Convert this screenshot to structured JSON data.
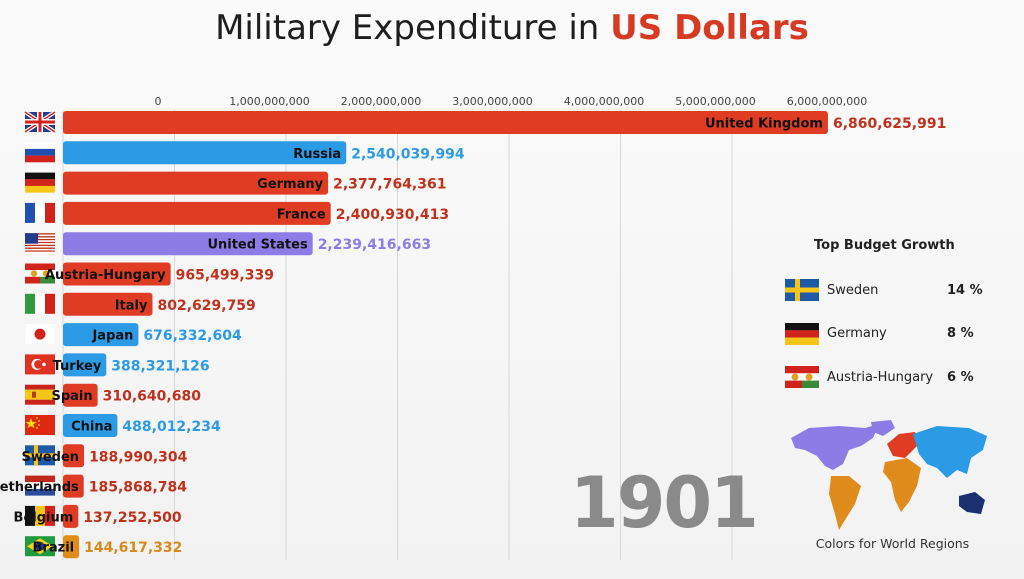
{
  "title": {
    "prefix": "Military Expenditure in ",
    "highlight": "US Dollars"
  },
  "year": "1901",
  "colors": {
    "red": "#e03c24",
    "blue": "#2c9be6",
    "purple": "#8e7ce6",
    "orange": "#e08c1c",
    "grid": "#d8d8d8"
  },
  "chart_data": {
    "type": "bar",
    "orientation": "horizontal",
    "xlim": [
      0,
      7000000000
    ],
    "x_ticks": [
      0,
      1000000000,
      2000000000,
      3000000000,
      4000000000,
      5000000000,
      6000000000
    ],
    "tick_labels": [
      "0",
      "1,000,000,000",
      "2,000,000,000",
      "3,000,000,000",
      "4,000,000,000",
      "5,000,000,000",
      "6,000,000,000"
    ],
    "grid": true,
    "categories": [
      "United Kingdom",
      "Russia",
      "Germany",
      "France",
      "United States",
      "Austria-Hungary",
      "Italy",
      "Japan",
      "Turkey",
      "Spain",
      "China",
      "Sweden",
      "Netherlands",
      "Belgium",
      "Brazil"
    ],
    "values": [
      6860625991,
      2540039994,
      2377764361,
      2400930413,
      2239416663,
      965499339,
      802629759,
      676332604,
      388321126,
      310640680,
      488012234,
      188990304,
      185868784,
      137252500,
      144617332
    ],
    "value_labels": [
      "6,860,625,991",
      "2,540,039,994",
      "2,377,764,361",
      "2,400,930,413",
      "2,239,416,663",
      "965,499,339",
      "802,629,759",
      "676,332,604",
      "388,321,126",
      "310,640,680",
      "488,012,234",
      "188,990,304",
      "185,868,784",
      "137,252,500",
      "144,617,332"
    ],
    "region_colors": [
      "red",
      "blue",
      "red",
      "red",
      "purple",
      "red",
      "red",
      "blue",
      "blue",
      "red",
      "blue",
      "red",
      "red",
      "red",
      "orange"
    ],
    "flags": [
      "uk-flag-icon",
      "russia-flag-icon",
      "germany-flag-icon",
      "france-flag-icon",
      "usa-flag-icon",
      "austria-hungary-flag-icon",
      "italy-flag-icon",
      "japan-flag-icon",
      "turkey-flag-icon",
      "spain-flag-icon",
      "china-flag-icon",
      "sweden-flag-icon",
      "netherlands-flag-icon",
      "belgium-flag-icon",
      "brazil-flag-icon"
    ]
  },
  "top_growth": {
    "title": "Top Budget Growth",
    "items": [
      {
        "name": "Sweden",
        "value": "14 %",
        "flag": "sweden-flag-icon"
      },
      {
        "name": "Germany",
        "value": "8 %",
        "flag": "germany-flag-icon"
      },
      {
        "name": "Austria-Hungary",
        "value": "6 %",
        "flag": "austria-hungary-flag-icon"
      }
    ]
  },
  "map_caption": "Colors for World Regions"
}
